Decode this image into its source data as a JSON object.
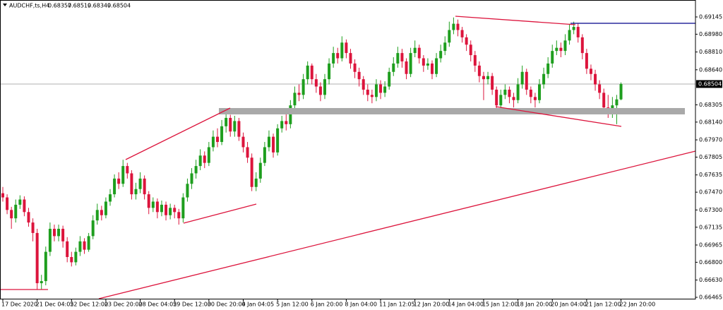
{
  "chart_data": {
    "type": "candlestick",
    "title": "AUDCHF,ts,H4",
    "up_color": "#1e9e1e",
    "down_color": "#dc143c",
    "ylim": [
      0.66445,
      0.69307
    ],
    "yticks": [
      0.69145,
      {
        "value": 0.6898,
        "label": "0.68980"
      },
      {
        "value": 0.6881,
        "label": "0.68810"
      },
      {
        "value": 0.6864,
        "label": "0.68640"
      },
      0.68305,
      {
        "value": 0.6814,
        "label": "0.68140"
      },
      {
        "value": 0.6797,
        "label": "0.67970"
      },
      0.67805,
      0.67635,
      {
        "value": 0.6747,
        "label": "0.67470"
      },
      {
        "value": 0.673,
        "label": "0.67300"
      },
      0.67135,
      0.66965,
      {
        "value": 0.668,
        "label": "0.66800"
      },
      {
        "value": 0.6663,
        "label": "0.66630"
      },
      0.66465
    ],
    "categories": [
      "17 Dec 2020",
      null,
      null,
      null,
      null,
      null,
      null,
      null,
      "21 Dec 04:05",
      null,
      null,
      null,
      null,
      null,
      null,
      null,
      "22 Dec 12:00",
      null,
      null,
      null,
      null,
      null,
      null,
      null,
      "23 Dec 20:00",
      null,
      null,
      null,
      null,
      null,
      null,
      null,
      "28 Dec 04:05",
      null,
      null,
      null,
      null,
      null,
      null,
      null,
      "29 Dec 12:00",
      null,
      null,
      null,
      null,
      null,
      null,
      null,
      "30 Dec 20:00",
      null,
      null,
      null,
      null,
      null,
      null,
      null,
      "4 Jan 04:05",
      null,
      null,
      null,
      null,
      null,
      null,
      null,
      "5 Jan 12:00",
      null,
      null,
      null,
      null,
      null,
      null,
      null,
      "6 Jan 20:00",
      null,
      null,
      null,
      null,
      null,
      null,
      null,
      "8 Jan 04:00",
      null,
      null,
      null,
      null,
      null,
      null,
      null,
      "11 Jan 12:05",
      null,
      null,
      null,
      null,
      null,
      null,
      null,
      "12 Jan 20:00",
      null,
      null,
      null,
      null,
      null,
      null,
      null,
      "14 Jan 04:00",
      null,
      null,
      null,
      null,
      null,
      null,
      null,
      "15 Jan 12:00",
      null,
      null,
      null,
      null,
      null,
      null,
      null,
      "18 Jan 20:00",
      null,
      null,
      null,
      null,
      null,
      null,
      null,
      "20 Jan 04:00",
      null,
      null,
      null,
      null,
      null,
      null,
      null,
      "21 Jan 12:00",
      null,
      null,
      null,
      null,
      null,
      null,
      null,
      "22 Jan 20:00"
    ],
    "candles": [
      [
        0.6746,
        0.6752,
        0.6738,
        0.6742
      ],
      [
        0.6742,
        0.6745,
        0.6726,
        0.673
      ],
      [
        0.673,
        0.6733,
        0.6712,
        0.6722
      ],
      [
        0.6722,
        0.674,
        0.6718,
        0.6735
      ],
      [
        0.6735,
        0.6744,
        0.6731,
        0.674
      ],
      [
        0.674,
        0.6743,
        0.6724,
        0.6728
      ],
      [
        0.6728,
        0.6732,
        0.6714,
        0.6718
      ],
      [
        0.6718,
        0.6722,
        0.67,
        0.6708
      ],
      [
        0.6708,
        0.6712,
        0.6654,
        0.666
      ],
      [
        0.666,
        0.6668,
        0.6654,
        0.6662
      ],
      [
        0.6662,
        0.6695,
        0.6658,
        0.669
      ],
      [
        0.669,
        0.6718,
        0.6686,
        0.6712
      ],
      [
        0.6712,
        0.6716,
        0.67,
        0.6705
      ],
      [
        0.6705,
        0.6716,
        0.67,
        0.6712
      ],
      [
        0.6712,
        0.6715,
        0.6694,
        0.67
      ],
      [
        0.67,
        0.6704,
        0.668,
        0.6685
      ],
      [
        0.6685,
        0.669,
        0.6676,
        0.668
      ],
      [
        0.668,
        0.6694,
        0.6677,
        0.669
      ],
      [
        0.669,
        0.6705,
        0.6686,
        0.67
      ],
      [
        0.67,
        0.6703,
        0.6688,
        0.6692
      ],
      [
        0.6692,
        0.6708,
        0.669,
        0.6705
      ],
      [
        0.6705,
        0.6725,
        0.6702,
        0.672
      ],
      [
        0.672,
        0.6736,
        0.6716,
        0.673
      ],
      [
        0.673,
        0.6734,
        0.672,
        0.6725
      ],
      [
        0.6725,
        0.6742,
        0.6722,
        0.6738
      ],
      [
        0.6738,
        0.675,
        0.6734,
        0.6745
      ],
      [
        0.6745,
        0.6764,
        0.6742,
        0.676
      ],
      [
        0.676,
        0.6766,
        0.675,
        0.6755
      ],
      [
        0.6755,
        0.6778,
        0.6752,
        0.6772
      ],
      [
        0.6772,
        0.6775,
        0.676,
        0.6765
      ],
      [
        0.6765,
        0.6768,
        0.674,
        0.6745
      ],
      [
        0.6745,
        0.6756,
        0.674,
        0.675
      ],
      [
        0.675,
        0.6766,
        0.6746,
        0.676
      ],
      [
        0.676,
        0.6763,
        0.674,
        0.6745
      ],
      [
        0.6745,
        0.6748,
        0.6726,
        0.6732
      ],
      [
        0.6732,
        0.6742,
        0.6728,
        0.6738
      ],
      [
        0.6738,
        0.6741,
        0.6722,
        0.6728
      ],
      [
        0.6728,
        0.6739,
        0.6724,
        0.6735
      ],
      [
        0.6735,
        0.6738,
        0.672,
        0.6725
      ],
      [
        0.6725,
        0.6736,
        0.6721,
        0.6732
      ],
      [
        0.6732,
        0.6735,
        0.6722,
        0.6728
      ],
      [
        0.6728,
        0.6731,
        0.6716,
        0.6722
      ],
      [
        0.6722,
        0.6746,
        0.6718,
        0.6742
      ],
      [
        0.6742,
        0.676,
        0.6738,
        0.6755
      ],
      [
        0.6755,
        0.677,
        0.675,
        0.6765
      ],
      [
        0.6765,
        0.6778,
        0.676,
        0.6772
      ],
      [
        0.6772,
        0.6788,
        0.6768,
        0.6782
      ],
      [
        0.6782,
        0.6786,
        0.677,
        0.6775
      ],
      [
        0.6775,
        0.6795,
        0.6772,
        0.679
      ],
      [
        0.679,
        0.6806,
        0.6786,
        0.68
      ],
      [
        0.68,
        0.6808,
        0.679,
        0.6795
      ],
      [
        0.6795,
        0.6816,
        0.6792,
        0.681
      ],
      [
        0.681,
        0.6824,
        0.6804,
        0.6818
      ],
      [
        0.6818,
        0.6821,
        0.68,
        0.6805
      ],
      [
        0.6805,
        0.682,
        0.68,
        0.6815
      ],
      [
        0.6815,
        0.6818,
        0.6796,
        0.68
      ],
      [
        0.68,
        0.6804,
        0.6785,
        0.679
      ],
      [
        0.679,
        0.6795,
        0.6775,
        0.678
      ],
      [
        0.678,
        0.6784,
        0.6748,
        0.6752
      ],
      [
        0.6752,
        0.6766,
        0.6748,
        0.676
      ],
      [
        0.676,
        0.678,
        0.6756,
        0.6775
      ],
      [
        0.6775,
        0.6795,
        0.6772,
        0.679
      ],
      [
        0.679,
        0.6806,
        0.6786,
        0.68
      ],
      [
        0.68,
        0.6803,
        0.678,
        0.6785
      ],
      [
        0.6785,
        0.6812,
        0.6782,
        0.6808
      ],
      [
        0.6808,
        0.682,
        0.6804,
        0.6815
      ],
      [
        0.6815,
        0.6822,
        0.6806,
        0.6812
      ],
      [
        0.6812,
        0.6835,
        0.6808,
        0.683
      ],
      [
        0.683,
        0.6848,
        0.6826,
        0.6842
      ],
      [
        0.6842,
        0.685,
        0.6834,
        0.684
      ],
      [
        0.684,
        0.686,
        0.6836,
        0.6855
      ],
      [
        0.6855,
        0.6872,
        0.685,
        0.6868
      ],
      [
        0.6868,
        0.687,
        0.685,
        0.6855
      ],
      [
        0.6855,
        0.686,
        0.6842,
        0.6848
      ],
      [
        0.6848,
        0.6852,
        0.6834,
        0.684
      ],
      [
        0.684,
        0.686,
        0.6836,
        0.6855
      ],
      [
        0.6855,
        0.6875,
        0.685,
        0.687
      ],
      [
        0.687,
        0.6886,
        0.6866,
        0.688
      ],
      [
        0.688,
        0.6885,
        0.687,
        0.6875
      ],
      [
        0.6875,
        0.6896,
        0.6872,
        0.689
      ],
      [
        0.689,
        0.6893,
        0.6875,
        0.688
      ],
      [
        0.688,
        0.6884,
        0.6865,
        0.687
      ],
      [
        0.687,
        0.6874,
        0.6856,
        0.6862
      ],
      [
        0.6862,
        0.6866,
        0.6848,
        0.6855
      ],
      [
        0.6855,
        0.6858,
        0.684,
        0.6845
      ],
      [
        0.6845,
        0.685,
        0.6834,
        0.684
      ],
      [
        0.684,
        0.6845,
        0.6832,
        0.6838
      ],
      [
        0.6838,
        0.6855,
        0.6834,
        0.685
      ],
      [
        0.685,
        0.6854,
        0.6836,
        0.6842
      ],
      [
        0.6842,
        0.6853,
        0.6838,
        0.6848
      ],
      [
        0.6848,
        0.6866,
        0.6845,
        0.6862
      ],
      [
        0.6862,
        0.6876,
        0.6858,
        0.687
      ],
      [
        0.687,
        0.6886,
        0.6866,
        0.688
      ],
      [
        0.688,
        0.6884,
        0.6866,
        0.6872
      ],
      [
        0.6872,
        0.6875,
        0.6855,
        0.686
      ],
      [
        0.686,
        0.6885,
        0.6857,
        0.688
      ],
      [
        0.688,
        0.6892,
        0.6876,
        0.6885
      ],
      [
        0.6885,
        0.6888,
        0.687,
        0.6875
      ],
      [
        0.6875,
        0.6878,
        0.6862,
        0.6868
      ],
      [
        0.6868,
        0.6875,
        0.6864,
        0.687
      ],
      [
        0.687,
        0.6873,
        0.6855,
        0.686
      ],
      [
        0.686,
        0.688,
        0.6857,
        0.6875
      ],
      [
        0.6875,
        0.6888,
        0.6871,
        0.6882
      ],
      [
        0.6882,
        0.6896,
        0.6878,
        0.689
      ],
      [
        0.689,
        0.691,
        0.6886,
        0.6902
      ],
      [
        0.6902,
        0.6914,
        0.6898,
        0.6908
      ],
      [
        0.6908,
        0.6912,
        0.6896,
        0.6902
      ],
      [
        0.6902,
        0.6905,
        0.689,
        0.6895
      ],
      [
        0.6895,
        0.6898,
        0.6882,
        0.6888
      ],
      [
        0.6888,
        0.6892,
        0.6872,
        0.6878
      ],
      [
        0.6878,
        0.6882,
        0.6862,
        0.6868
      ],
      [
        0.6868,
        0.6872,
        0.6852,
        0.6858
      ],
      [
        0.6858,
        0.6862,
        0.6835,
        0.6855
      ],
      [
        0.6855,
        0.6862,
        0.685,
        0.6858
      ],
      [
        0.6858,
        0.6861,
        0.684,
        0.6845
      ],
      [
        0.6845,
        0.6848,
        0.6825,
        0.683
      ],
      [
        0.683,
        0.6845,
        0.6826,
        0.684
      ],
      [
        0.684,
        0.685,
        0.6836,
        0.6845
      ],
      [
        0.6845,
        0.6848,
        0.6832,
        0.6838
      ],
      [
        0.6838,
        0.6842,
        0.6828,
        0.6835
      ],
      [
        0.6835,
        0.6856,
        0.6832,
        0.685
      ],
      [
        0.685,
        0.6868,
        0.6846,
        0.6862
      ],
      [
        0.6862,
        0.6865,
        0.684,
        0.6845
      ],
      [
        0.6845,
        0.6848,
        0.6832,
        0.6838
      ],
      [
        0.6838,
        0.6842,
        0.6828,
        0.6835
      ],
      [
        0.6835,
        0.6855,
        0.6832,
        0.685
      ],
      [
        0.685,
        0.6866,
        0.6846,
        0.686
      ],
      [
        0.686,
        0.6876,
        0.6856,
        0.687
      ],
      [
        0.687,
        0.6888,
        0.6866,
        0.6882
      ],
      [
        0.6882,
        0.6892,
        0.6878,
        0.6885
      ],
      [
        0.6885,
        0.689,
        0.6876,
        0.6882
      ],
      [
        0.6882,
        0.6898,
        0.6878,
        0.6892
      ],
      [
        0.6892,
        0.6908,
        0.6888,
        0.6902
      ],
      [
        0.6902,
        0.691,
        0.6898,
        0.6905
      ],
      [
        0.6905,
        0.6908,
        0.689,
        0.6895
      ],
      [
        0.6895,
        0.6898,
        0.6874,
        0.688
      ],
      [
        0.688,
        0.6884,
        0.686,
        0.6865
      ],
      [
        0.6865,
        0.6869,
        0.6854,
        0.686
      ],
      [
        0.686,
        0.6864,
        0.6844,
        0.685
      ],
      [
        0.685,
        0.6854,
        0.6836,
        0.6842
      ],
      [
        0.6842,
        0.6846,
        0.6822,
        0.6828
      ],
      [
        0.6828,
        0.684,
        0.6818,
        0.6822
      ],
      [
        0.6822,
        0.6838,
        0.6818,
        0.683
      ],
      [
        0.683,
        0.684,
        0.6812,
        0.68357
      ],
      [
        0.68357,
        0.68519,
        0.68349,
        0.68504
      ]
    ]
  }
}
